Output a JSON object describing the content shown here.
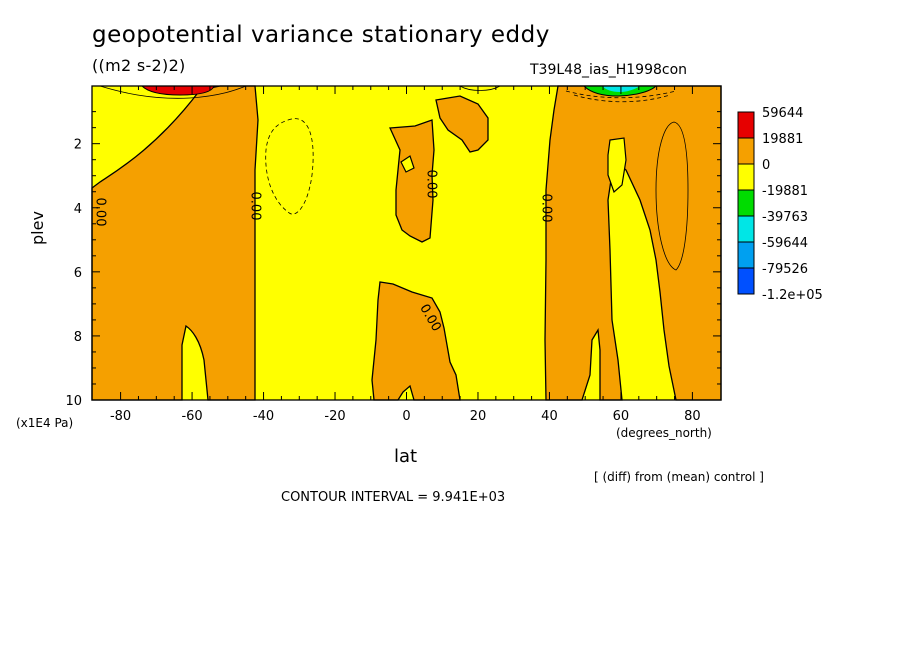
{
  "header": {
    "title": "geopotential variance stationary eddy",
    "units": "((m2 s-2)2)",
    "run_id": "T39L48_ias_H1998con"
  },
  "footer": {
    "contour_interval": "CONTOUR INTERVAL = 9.941E+03",
    "diff_note": "[ (diff) from (mean) control ]"
  },
  "chart_data": {
    "type": "heatmap",
    "title": "geopotential variance stationary eddy",
    "xlabel": "lat",
    "xunit": "(degrees_north)",
    "ylabel": "plev",
    "yunit": "(x1E4 Pa)",
    "xlim": [
      -88,
      88
    ],
    "ylim": [
      10,
      0.2
    ],
    "x_ticks": [
      -80,
      -60,
      -40,
      -20,
      0,
      20,
      40,
      60,
      80
    ],
    "x_tick_labels": [
      "-80",
      "-60",
      "-40",
      "-20",
      "0",
      "20",
      "40",
      "60",
      "80"
    ],
    "y_ticks": [
      2,
      4,
      6,
      8,
      10
    ],
    "y_tick_labels": [
      "2",
      "4",
      "6",
      "8",
      "10"
    ],
    "contour_interval": 9941,
    "contour_labels": [
      "0.00",
      "0.00",
      "0.00",
      "0.00",
      "0.00"
    ],
    "levels": [
      {
        "label": "59644",
        "color": "#e60000"
      },
      {
        "label": "19881",
        "color": "#f5a000"
      },
      {
        "label": "0",
        "color": "#ffff00"
      },
      {
        "label": "-19881",
        "color": "#00dc00"
      },
      {
        "label": "-39763",
        "color": "#00e6e6"
      },
      {
        "label": "-59644",
        "color": "#00a0f0"
      },
      {
        "label": "-79526",
        "color": "#0050ff"
      },
      {
        "label": "-1.2e+05",
        "color": "#0050ff"
      }
    ],
    "colors": {
      "positive": "#f5a000",
      "background": "#ffff00",
      "max": "#e60000",
      "negative_1": "#00dc00",
      "negative_2": "#00e6e6"
    }
  }
}
